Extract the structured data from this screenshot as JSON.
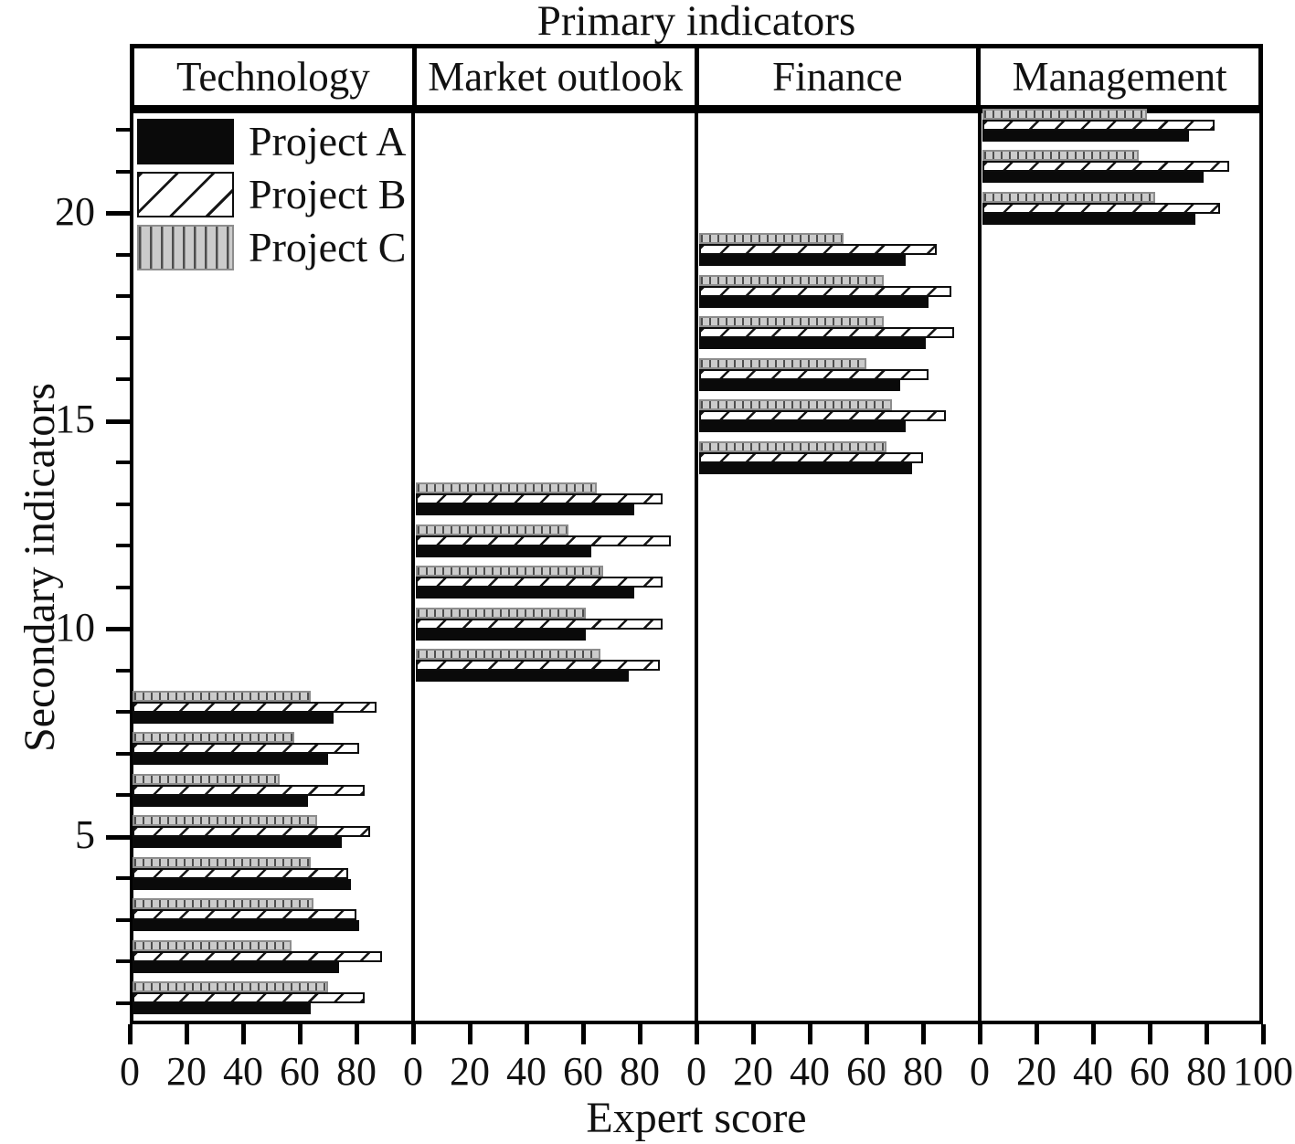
{
  "chart_data": {
    "type": "bar",
    "orientation": "horizontal",
    "title": "Primary indicators",
    "xlabel": "Expert score",
    "ylabel": "Secondary indicators",
    "x_axis": {
      "min": 0,
      "max": 100,
      "tick_step": 20,
      "tick_labels_per_panel": [
        0,
        20,
        40,
        60,
        80
      ],
      "last_panel_extra_label": 100
    },
    "y_axis": {
      "indicator_count": 22,
      "minor_tick_step": 1,
      "major_tick_labels": [
        5,
        10,
        15,
        20
      ]
    },
    "legend_position": "top-left-inside",
    "grid": false,
    "series": [
      {
        "name": "Project A",
        "swatch": "solid-black"
      },
      {
        "name": "Project B",
        "swatch": "diagonal-hatch"
      },
      {
        "name": "Project C",
        "swatch": "vertical-hatch-gray"
      }
    ],
    "panels": [
      {
        "label": "Technology",
        "first_indicator": 1,
        "rows_series_order": [
          "Project A",
          "Project B",
          "Project C"
        ],
        "rows": [
          [
            63,
            82,
            69
          ],
          [
            73,
            88,
            56
          ],
          [
            80,
            79,
            64
          ],
          [
            77,
            76,
            63
          ],
          [
            74,
            84,
            65
          ],
          [
            62,
            82,
            52
          ],
          [
            69,
            80,
            57
          ],
          [
            71,
            86,
            63
          ]
        ]
      },
      {
        "label": "Market outlook",
        "first_indicator": 9,
        "rows_series_order": [
          "Project A",
          "Project B",
          "Project C"
        ],
        "rows": [
          [
            75,
            86,
            65
          ],
          [
            60,
            87,
            60
          ],
          [
            77,
            87,
            66
          ],
          [
            62,
            90,
            54
          ],
          [
            77,
            87,
            64
          ]
        ]
      },
      {
        "label": "Finance",
        "first_indicator": 14,
        "rows_series_order": [
          "Project A",
          "Project B",
          "Project C"
        ],
        "rows": [
          [
            75,
            79,
            66
          ],
          [
            73,
            87,
            68
          ],
          [
            71,
            81,
            59
          ],
          [
            80,
            90,
            65
          ],
          [
            81,
            89,
            65
          ],
          [
            73,
            84,
            51
          ]
        ]
      },
      {
        "label": "Management",
        "first_indicator": 20,
        "rows_series_order": [
          "Project A",
          "Project B",
          "Project C"
        ],
        "rows": [
          [
            75,
            84,
            61
          ],
          [
            78,
            87,
            55
          ],
          [
            73,
            82,
            58
          ]
        ]
      }
    ]
  },
  "colors": {
    "axis": "#000000",
    "text": "#111111",
    "bar_project_a": "#0a0a0a",
    "bar_project_b_bg": "#ffffff",
    "bar_project_b_hatch": "#161616",
    "bar_project_c_bg": "#cbcbcb",
    "bar_project_c_hatch": "#4e4e4e",
    "bar_project_c_border": "#8d8d8d"
  }
}
